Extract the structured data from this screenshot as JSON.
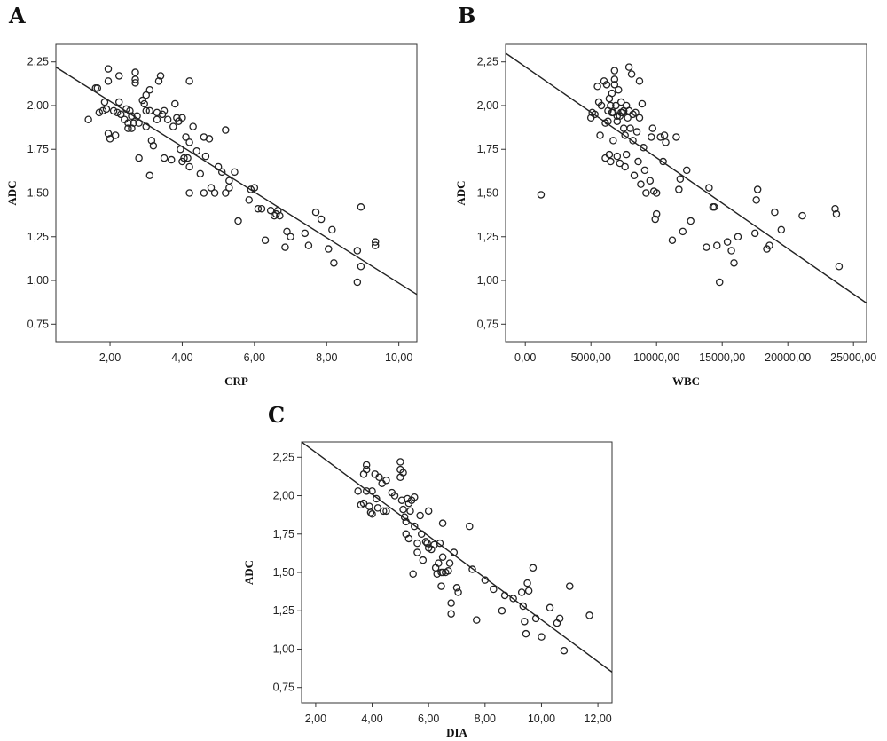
{
  "chart_data": [
    {
      "type": "scatter",
      "panel": "A",
      "xlabel": "CRP",
      "ylabel": "ADC",
      "xlim": [
        0.5,
        10.5
      ],
      "ylim": [
        0.65,
        2.35
      ],
      "xticks": [
        2,
        4,
        6,
        8,
        10
      ],
      "xtick_labels": [
        "2,00",
        "4,00",
        "6,00",
        "8,00",
        "10,00"
      ],
      "yticks": [
        0.75,
        1.0,
        1.25,
        1.5,
        1.75,
        2.0,
        2.25
      ],
      "ytick_labels": [
        "0,75",
        "1,00",
        "1,25",
        "1,50",
        "1,75",
        "2,00",
        "2,25"
      ],
      "fit_line": {
        "x": [
          0.5,
          10.5
        ],
        "y": [
          2.22,
          0.92
        ]
      },
      "points": [
        [
          1.4,
          1.92
        ],
        [
          1.6,
          2.1
        ],
        [
          1.65,
          2.1
        ],
        [
          1.7,
          1.96
        ],
        [
          1.8,
          1.97
        ],
        [
          1.85,
          2.02
        ],
        [
          1.9,
          1.98
        ],
        [
          1.95,
          2.21
        ],
        [
          1.95,
          2.14
        ],
        [
          1.95,
          1.84
        ],
        [
          2.0,
          1.81
        ],
        [
          2.1,
          1.97
        ],
        [
          2.15,
          1.83
        ],
        [
          2.2,
          1.96
        ],
        [
          2.25,
          2.02
        ],
        [
          2.25,
          2.17
        ],
        [
          2.3,
          1.95
        ],
        [
          2.4,
          1.92
        ],
        [
          2.45,
          1.98
        ],
        [
          2.5,
          1.9
        ],
        [
          2.5,
          1.87
        ],
        [
          2.55,
          1.97
        ],
        [
          2.6,
          1.87
        ],
        [
          2.6,
          1.94
        ],
        [
          2.65,
          1.9
        ],
        [
          2.7,
          2.19
        ],
        [
          2.7,
          2.15
        ],
        [
          2.7,
          2.13
        ],
        [
          2.75,
          1.94
        ],
        [
          2.8,
          1.9
        ],
        [
          2.8,
          1.7
        ],
        [
          2.9,
          2.03
        ],
        [
          2.95,
          2.01
        ],
        [
          3.0,
          2.06
        ],
        [
          3.0,
          1.97
        ],
        [
          3.0,
          1.88
        ],
        [
          3.1,
          2.09
        ],
        [
          3.1,
          1.97
        ],
        [
          3.1,
          1.6
        ],
        [
          3.15,
          1.8
        ],
        [
          3.2,
          1.77
        ],
        [
          3.3,
          1.96
        ],
        [
          3.3,
          1.92
        ],
        [
          3.35,
          2.14
        ],
        [
          3.4,
          2.17
        ],
        [
          3.45,
          1.95
        ],
        [
          3.5,
          1.97
        ],
        [
          3.5,
          1.7
        ],
        [
          3.6,
          1.92
        ],
        [
          3.7,
          1.69
        ],
        [
          3.75,
          1.88
        ],
        [
          3.8,
          2.01
        ],
        [
          3.85,
          1.93
        ],
        [
          3.9,
          1.91
        ],
        [
          3.95,
          1.75
        ],
        [
          4.0,
          1.93
        ],
        [
          4.0,
          1.68
        ],
        [
          4.05,
          1.7
        ],
        [
          4.1,
          1.82
        ],
        [
          4.15,
          1.7
        ],
        [
          4.2,
          2.14
        ],
        [
          4.2,
          1.79
        ],
        [
          4.2,
          1.65
        ],
        [
          4.2,
          1.5
        ],
        [
          4.3,
          1.88
        ],
        [
          4.4,
          1.74
        ],
        [
          4.5,
          1.61
        ],
        [
          4.6,
          1.82
        ],
        [
          4.6,
          1.5
        ],
        [
          4.65,
          1.71
        ],
        [
          4.75,
          1.81
        ],
        [
          4.8,
          1.53
        ],
        [
          4.9,
          1.5
        ],
        [
          5.0,
          1.65
        ],
        [
          5.1,
          1.62
        ],
        [
          5.2,
          1.86
        ],
        [
          5.2,
          1.5
        ],
        [
          5.3,
          1.53
        ],
        [
          5.3,
          1.57
        ],
        [
          5.45,
          1.62
        ],
        [
          5.55,
          1.34
        ],
        [
          5.85,
          1.46
        ],
        [
          5.9,
          1.52
        ],
        [
          6.0,
          1.53
        ],
        [
          6.1,
          1.41
        ],
        [
          6.2,
          1.41
        ],
        [
          6.3,
          1.23
        ],
        [
          6.45,
          1.4
        ],
        [
          6.55,
          1.37
        ],
        [
          6.6,
          1.38
        ],
        [
          6.65,
          1.4
        ],
        [
          6.7,
          1.37
        ],
        [
          6.85,
          1.19
        ],
        [
          6.9,
          1.28
        ],
        [
          7.0,
          1.25
        ],
        [
          7.4,
          1.27
        ],
        [
          7.5,
          1.2
        ],
        [
          7.7,
          1.39
        ],
        [
          7.85,
          1.35
        ],
        [
          8.05,
          1.18
        ],
        [
          8.15,
          1.29
        ],
        [
          8.2,
          1.1
        ],
        [
          8.85,
          1.17
        ],
        [
          8.85,
          0.99
        ],
        [
          8.95,
          1.42
        ],
        [
          8.95,
          1.08
        ],
        [
          9.35,
          1.2
        ],
        [
          9.35,
          1.22
        ]
      ]
    },
    {
      "type": "scatter",
      "panel": "B",
      "xlabel": "WBC",
      "ylabel": "ADC",
      "xlim": [
        -1500,
        26000
      ],
      "ylim": [
        0.65,
        2.35
      ],
      "xticks": [
        0,
        5000,
        10000,
        15000,
        20000,
        25000
      ],
      "xtick_labels": [
        "0,00",
        "5000,00",
        "10000,00",
        "15000,00",
        "20000,00",
        "25000,00"
      ],
      "yticks": [
        0.75,
        1.0,
        1.25,
        1.5,
        1.75,
        2.0,
        2.25
      ],
      "ytick_labels": [
        "0,75",
        "1,00",
        "1,25",
        "1,50",
        "1,75",
        "2,00",
        "2,25"
      ],
      "fit_line": {
        "x": [
          -1500,
          26000
        ],
        "y": [
          2.3,
          0.87
        ]
      },
      "points": [
        [
          1200,
          1.49
        ],
        [
          5000,
          1.93
        ],
        [
          5100,
          1.96
        ],
        [
          5300,
          1.95
        ],
        [
          5500,
          2.11
        ],
        [
          5600,
          2.02
        ],
        [
          5700,
          1.83
        ],
        [
          5800,
          2.0
        ],
        [
          6000,
          2.14
        ],
        [
          6100,
          1.9
        ],
        [
          6100,
          1.7
        ],
        [
          6200,
          2.12
        ],
        [
          6300,
          1.97
        ],
        [
          6300,
          1.91
        ],
        [
          6400,
          2.04
        ],
        [
          6400,
          1.72
        ],
        [
          6500,
          2.0
        ],
        [
          6500,
          1.68
        ],
        [
          6600,
          2.07
        ],
        [
          6600,
          1.96
        ],
        [
          6700,
          1.96
        ],
        [
          6700,
          1.8
        ],
        [
          6800,
          2.2
        ],
        [
          6800,
          2.15
        ],
        [
          6800,
          2.12
        ],
        [
          6900,
          2.0
        ],
        [
          7000,
          1.94
        ],
        [
          7000,
          1.91
        ],
        [
          7000,
          1.71
        ],
        [
          7100,
          2.09
        ],
        [
          7200,
          1.94
        ],
        [
          7200,
          1.67
        ],
        [
          7300,
          2.02
        ],
        [
          7300,
          1.96
        ],
        [
          7400,
          1.96
        ],
        [
          7500,
          1.97
        ],
        [
          7500,
          1.87
        ],
        [
          7600,
          1.83
        ],
        [
          7600,
          1.65
        ],
        [
          7700,
          2.0
        ],
        [
          7700,
          1.72
        ],
        [
          7800,
          1.93
        ],
        [
          7900,
          2.22
        ],
        [
          7900,
          1.97
        ],
        [
          8000,
          1.87
        ],
        [
          8100,
          2.18
        ],
        [
          8200,
          1.95
        ],
        [
          8200,
          1.8
        ],
        [
          8300,
          1.6
        ],
        [
          8400,
          1.96
        ],
        [
          8500,
          1.85
        ],
        [
          8600,
          1.68
        ],
        [
          8700,
          2.14
        ],
        [
          8700,
          1.93
        ],
        [
          8800,
          1.55
        ],
        [
          8900,
          2.01
        ],
        [
          9000,
          1.76
        ],
        [
          9100,
          1.63
        ],
        [
          9200,
          1.5
        ],
        [
          9500,
          1.57
        ],
        [
          9600,
          1.82
        ],
        [
          9700,
          1.87
        ],
        [
          9800,
          1.51
        ],
        [
          9900,
          1.35
        ],
        [
          10000,
          1.38
        ],
        [
          10000,
          1.5
        ],
        [
          10300,
          1.82
        ],
        [
          10500,
          1.68
        ],
        [
          10600,
          1.83
        ],
        [
          10700,
          1.79
        ],
        [
          11200,
          1.23
        ],
        [
          11500,
          1.82
        ],
        [
          11700,
          1.52
        ],
        [
          11800,
          1.58
        ],
        [
          12000,
          1.28
        ],
        [
          12300,
          1.63
        ],
        [
          12600,
          1.34
        ],
        [
          13800,
          1.19
        ],
        [
          14000,
          1.53
        ],
        [
          14300,
          1.42
        ],
        [
          14400,
          1.42
        ],
        [
          14600,
          1.2
        ],
        [
          14800,
          0.99
        ],
        [
          15400,
          1.22
        ],
        [
          15700,
          1.17
        ],
        [
          15900,
          1.1
        ],
        [
          16200,
          1.25
        ],
        [
          17500,
          1.27
        ],
        [
          17600,
          1.46
        ],
        [
          17700,
          1.52
        ],
        [
          18400,
          1.18
        ],
        [
          18600,
          1.2
        ],
        [
          19000,
          1.39
        ],
        [
          19500,
          1.29
        ],
        [
          21100,
          1.37
        ],
        [
          23600,
          1.41
        ],
        [
          23700,
          1.38
        ],
        [
          23900,
          1.08
        ]
      ]
    },
    {
      "type": "scatter",
      "panel": "C",
      "xlabel": "DIA",
      "ylabel": "ADC",
      "xlim": [
        1.5,
        12.5
      ],
      "ylim": [
        0.65,
        2.35
      ],
      "xticks": [
        2,
        4,
        6,
        8,
        10,
        12
      ],
      "xtick_labels": [
        "2,00",
        "4,00",
        "6,00",
        "8,00",
        "10,00",
        "12,00"
      ],
      "yticks": [
        0.75,
        1.0,
        1.25,
        1.5,
        1.75,
        2.0,
        2.25
      ],
      "ytick_labels": [
        "0,75",
        "1,00",
        "1,25",
        "1,50",
        "1,75",
        "2,00",
        "2,25"
      ],
      "fit_line": {
        "x": [
          1.5,
          12.5
        ],
        "y": [
          2.35,
          0.85
        ]
      },
      "points": [
        [
          3.5,
          2.03
        ],
        [
          3.6,
          1.94
        ],
        [
          3.7,
          2.14
        ],
        [
          3.7,
          1.95
        ],
        [
          3.8,
          2.2
        ],
        [
          3.8,
          2.17
        ],
        [
          3.8,
          2.03
        ],
        [
          3.9,
          1.93
        ],
        [
          3.95,
          1.89
        ],
        [
          4.0,
          2.03
        ],
        [
          4.0,
          1.88
        ],
        [
          4.1,
          2.14
        ],
        [
          4.15,
          1.98
        ],
        [
          4.2,
          1.92
        ],
        [
          4.25,
          2.12
        ],
        [
          4.35,
          2.08
        ],
        [
          4.4,
          1.9
        ],
        [
          4.5,
          2.1
        ],
        [
          4.5,
          1.9
        ],
        [
          4.7,
          2.02
        ],
        [
          4.8,
          2.0
        ],
        [
          5.0,
          2.22
        ],
        [
          5.0,
          2.17
        ],
        [
          5.0,
          2.12
        ],
        [
          5.05,
          1.97
        ],
        [
          5.1,
          2.15
        ],
        [
          5.1,
          1.91
        ],
        [
          5.15,
          1.86
        ],
        [
          5.2,
          1.83
        ],
        [
          5.2,
          1.75
        ],
        [
          5.25,
          1.98
        ],
        [
          5.3,
          1.95
        ],
        [
          5.3,
          1.72
        ],
        [
          5.35,
          1.9
        ],
        [
          5.4,
          1.97
        ],
        [
          5.45,
          1.49
        ],
        [
          5.5,
          1.99
        ],
        [
          5.5,
          1.8
        ],
        [
          5.6,
          1.69
        ],
        [
          5.6,
          1.63
        ],
        [
          5.7,
          1.87
        ],
        [
          5.75,
          1.75
        ],
        [
          5.8,
          1.58
        ],
        [
          5.9,
          1.7
        ],
        [
          5.95,
          1.69
        ],
        [
          6.0,
          1.9
        ],
        [
          6.0,
          1.66
        ],
        [
          6.1,
          1.65
        ],
        [
          6.2,
          1.68
        ],
        [
          6.25,
          1.53
        ],
        [
          6.3,
          1.49
        ],
        [
          6.35,
          1.56
        ],
        [
          6.4,
          1.69
        ],
        [
          6.45,
          1.5
        ],
        [
          6.45,
          1.41
        ],
        [
          6.5,
          1.82
        ],
        [
          6.5,
          1.6
        ],
        [
          6.5,
          1.5
        ],
        [
          6.6,
          1.5
        ],
        [
          6.7,
          1.51
        ],
        [
          6.75,
          1.56
        ],
        [
          6.8,
          1.3
        ],
        [
          6.8,
          1.23
        ],
        [
          6.9,
          1.63
        ],
        [
          7.0,
          1.4
        ],
        [
          7.05,
          1.37
        ],
        [
          7.45,
          1.8
        ],
        [
          7.55,
          1.52
        ],
        [
          7.7,
          1.19
        ],
        [
          8.0,
          1.45
        ],
        [
          8.3,
          1.39
        ],
        [
          8.6,
          1.25
        ],
        [
          8.7,
          1.35
        ],
        [
          9.0,
          1.33
        ],
        [
          9.3,
          1.37
        ],
        [
          9.35,
          1.28
        ],
        [
          9.4,
          1.18
        ],
        [
          9.45,
          1.1
        ],
        [
          9.5,
          1.43
        ],
        [
          9.55,
          1.38
        ],
        [
          9.7,
          1.53
        ],
        [
          9.8,
          1.2
        ],
        [
          10.0,
          1.08
        ],
        [
          10.3,
          1.27
        ],
        [
          10.55,
          1.17
        ],
        [
          10.65,
          1.2
        ],
        [
          10.8,
          0.99
        ],
        [
          11.0,
          1.41
        ],
        [
          11.7,
          1.22
        ]
      ]
    }
  ]
}
